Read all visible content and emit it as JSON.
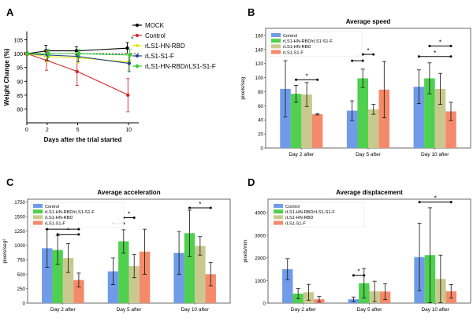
{
  "panel_letters": [
    "A",
    "B",
    "C",
    "D"
  ],
  "colors": {
    "mock": "#000000",
    "control": "#d62728",
    "rbd": "#e6e600",
    "s1f": "#1f3f8f",
    "combo": "#33cc33",
    "bar_control": "#6f9be8",
    "bar_combo": "#4fd04f",
    "bar_rbd": "#c9c98f",
    "bar_s1f": "#f58a6a",
    "sig": "#000000"
  },
  "chart_data": [
    {
      "type": "line",
      "panel": "A",
      "xlabel": "Days after the trial started",
      "ylabel": "Weight Change (%)",
      "x": [
        0,
        2,
        5,
        10
      ],
      "xlim": [
        0,
        11
      ],
      "ylim": [
        75,
        108
      ],
      "yticks": [
        80,
        85,
        90,
        95,
        100,
        105
      ],
      "reference_line": 100,
      "series": [
        {
          "name": "MOCK",
          "key": "mock",
          "values": [
            100,
            101,
            101,
            102
          ],
          "err": [
            0,
            2,
            1.5,
            2
          ]
        },
        {
          "name": "Control",
          "key": "control",
          "values": [
            100,
            97.5,
            93.5,
            85
          ],
          "err": [
            0,
            3.5,
            5,
            6
          ]
        },
        {
          "name": "rLS1-HN-RBD",
          "key": "rbd",
          "values": [
            100,
            99,
            98.5,
            97
          ],
          "err": [
            0,
            2,
            2,
            3
          ]
        },
        {
          "name": "rLS1-S1-F",
          "key": "s1f",
          "values": [
            100,
            99.5,
            99,
            96.5
          ],
          "err": [
            0,
            2,
            2,
            3
          ]
        },
        {
          "name": "rLS1-HN-RBD/rLS1-S1-F",
          "key": "combo",
          "values": [
            100,
            100,
            100,
            99.5
          ],
          "err": [
            0,
            1.5,
            1.5,
            2
          ]
        }
      ],
      "annotations": [
        "*"
      ]
    },
    {
      "type": "bar",
      "panel": "B",
      "title": "Average speed",
      "ylabel": "pixels/seg",
      "categories": [
        "Day 2 after",
        "Day 5 after",
        "Day 10 after"
      ],
      "ylim": [
        0,
        170
      ],
      "yticks": [
        0,
        20,
        40,
        60,
        80,
        100,
        120,
        140,
        160
      ],
      "series": [
        {
          "name": "Control",
          "key": "bar_control",
          "values": [
            84,
            53,
            87
          ],
          "err": [
            40,
            14,
            24
          ]
        },
        {
          "name": "rLS1-HN-RBD/rLS1-S1-F",
          "key": "bar_combo",
          "values": [
            77,
            99,
            99
          ],
          "err": [
            12,
            13,
            22
          ]
        },
        {
          "name": "rLS1-HN-RBD",
          "key": "bar_rbd",
          "values": [
            76,
            55,
            84
          ],
          "err": [
            17,
            7,
            22
          ]
        },
        {
          "name": "rLS1-S1-F",
          "key": "bar_s1f",
          "values": [
            48,
            83,
            52
          ],
          "err": [
            1,
            40,
            13
          ]
        }
      ],
      "significance": [
        {
          "group": 0,
          "from": 1,
          "to": 3,
          "y": 97
        },
        {
          "group": 1,
          "from": 0,
          "to": 1,
          "y": 124
        },
        {
          "group": 1,
          "from": 1,
          "to": 2,
          "y": 133
        },
        {
          "group": 2,
          "from": 0,
          "to": 3,
          "y": 130
        },
        {
          "group": 2,
          "from": 1,
          "to": 3,
          "y": 145
        }
      ]
    },
    {
      "type": "bar",
      "panel": "C",
      "title": "Average acceleration",
      "ylabel": "pixels/seg²",
      "categories": [
        "Day 2 after",
        "Day 5 after",
        "Day 10 after"
      ],
      "ylim": [
        0,
        1800
      ],
      "yticks": [
        0,
        250,
        500,
        750,
        1000,
        1250,
        1500,
        1750
      ],
      "series": [
        {
          "name": "Control",
          "key": "bar_control",
          "values": [
            950,
            550,
            870
          ],
          "err": [
            330,
            230,
            370
          ]
        },
        {
          "name": "rLS1-HN-RBD/rLS1-S1-F",
          "key": "bar_combo",
          "values": [
            920,
            1070,
            1210
          ],
          "err": [
            250,
            200,
            400
          ]
        },
        {
          "name": "rLS1-HN-RBD",
          "key": "bar_rbd",
          "values": [
            780,
            640,
            990
          ],
          "err": [
            250,
            200,
            160
          ]
        },
        {
          "name": "rLS1-S1-F",
          "key": "bar_s1f",
          "values": [
            400,
            890,
            500
          ],
          "err": [
            120,
            390,
            200
          ]
        }
      ],
      "significance": [
        {
          "group": 0,
          "from": 0,
          "to": 3,
          "y": 1280
        },
        {
          "group": 0,
          "from": 1,
          "to": 3,
          "y": 1190
        },
        {
          "group": 1,
          "from": 0,
          "to": 1,
          "y": 1380
        },
        {
          "group": 1,
          "from": 1,
          "to": 2,
          "y": 1480
        },
        {
          "group": 2,
          "from": 1,
          "to": 3,
          "y": 1650
        }
      ]
    },
    {
      "type": "bar",
      "panel": "D",
      "title": "Average displacement",
      "ylabel": "pixels/min",
      "categories": [
        "Day 2 after",
        "Day 5 after",
        "Day 10 after"
      ],
      "ylim": [
        0,
        4600
      ],
      "yticks": [
        0,
        1000,
        2000,
        3000,
        4000
      ],
      "series": [
        {
          "name": "Control",
          "key": "bar_control",
          "values": [
            1500,
            170,
            2040
          ],
          "err": [
            460,
            100,
            1500
          ]
        },
        {
          "name": "rLS1-HN-RBD/rLS1-S1-F",
          "key": "bar_combo",
          "values": [
            420,
            880,
            2120
          ],
          "err": [
            220,
            650,
            2100
          ]
        },
        {
          "name": "rLS1-HN-RBD",
          "key": "bar_rbd",
          "values": [
            480,
            520,
            1070
          ],
          "err": [
            350,
            450,
            1050
          ]
        },
        {
          "name": "rLS1-S1-F",
          "key": "bar_s1f",
          "values": [
            170,
            510,
            520
          ],
          "err": [
            120,
            350,
            300
          ]
        }
      ],
      "significance": [
        {
          "group": 1,
          "from": 0,
          "to": 1,
          "y": 1230
        },
        {
          "group": 2,
          "from": 0,
          "to": 3,
          "y": 4470
        }
      ]
    }
  ]
}
